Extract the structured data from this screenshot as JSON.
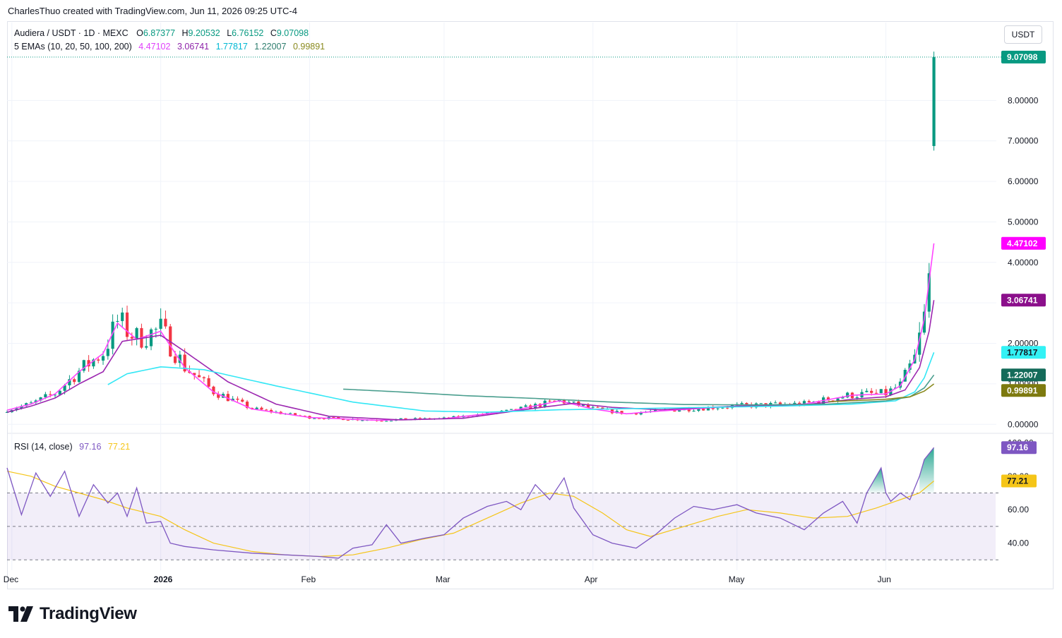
{
  "header": {
    "credit": "CharlesThuo created with TradingView.com, Jun 11, 2026 09:25 UTC-4"
  },
  "legend": {
    "symbol": "Audiera / USDT · 1D · MEXC",
    "o_label": "O",
    "o_value": "6.87377",
    "h_label": "H",
    "h_value": "9.20532",
    "l_label": "L",
    "l_value": "6.76152",
    "c_label": "C",
    "c_value": "9.07098",
    "ema_label": "5 EMAs (10, 20, 50, 100, 200)",
    "ema_values": [
      "4.47102",
      "3.06741",
      "1.77817",
      "1.22007",
      "0.99891"
    ]
  },
  "rsi_legend": {
    "label": "RSI (14, close)",
    "rsi_value": "97.16",
    "ma_value": "77.21"
  },
  "unit_button": "USDT",
  "logo_text": "TradingView",
  "colors": {
    "up": "#089981",
    "down": "#f23645",
    "ema10": "#ff44ff",
    "ema20": "#9c27b0",
    "ema50": "#33e7f5",
    "ema100": "#4a9e8e",
    "ema200": "#8a8a1f",
    "rsi": "#7e57c2",
    "rsi_ma": "#f5c518"
  },
  "chart_data": [
    {
      "type": "candlestick",
      "symbol": "Audiera / USDT",
      "interval": "1D",
      "exchange": "MEXC",
      "y_axis_labels": [
        "0.00000",
        "1.00000",
        "2.00000",
        "3.00000",
        "4.00000",
        "5.00000",
        "6.00000",
        "7.00000",
        "8.00000"
      ],
      "ylim": [
        -0.1,
        9.4
      ],
      "x_axis_labels": [
        {
          "label": "Dec",
          "date": "2025-12-01"
        },
        {
          "label": "2026",
          "date": "2026-01-01"
        },
        {
          "label": "Feb",
          "date": "2026-02-01"
        },
        {
          "label": "Mar",
          "date": "2026-03-01"
        },
        {
          "label": "Apr",
          "date": "2026-04-01"
        },
        {
          "label": "May",
          "date": "2026-05-01"
        },
        {
          "label": "Jun",
          "date": "2026-06-01"
        }
      ],
      "x_range": [
        "2025-11-30",
        "2026-06-24"
      ],
      "last_price": "9.07098",
      "last_ohlc": {
        "open": 6.87377,
        "high": 9.20532,
        "low": 6.76152,
        "close": 9.07098
      },
      "series": [
        {
          "name": "EMA 10",
          "current": "4.47102",
          "points": [
            [
              "2025-11-30",
              0.35
            ],
            [
              "2025-12-05",
              0.5
            ],
            [
              "2025-12-10",
              0.75
            ],
            [
              "2025-12-15",
              1.3
            ],
            [
              "2025-12-20",
              1.75
            ],
            [
              "2025-12-23",
              2.5
            ],
            [
              "2025-12-27",
              2.1
            ],
            [
              "2026-01-01",
              2.3
            ],
            [
              "2026-01-06",
              1.4
            ],
            [
              "2026-01-12",
              0.8
            ],
            [
              "2026-01-20",
              0.38
            ],
            [
              "2026-02-01",
              0.17
            ],
            [
              "2026-02-15",
              0.1
            ],
            [
              "2026-03-01",
              0.14
            ],
            [
              "2026-03-15",
              0.33
            ],
            [
              "2026-03-25",
              0.58
            ],
            [
              "2026-04-01",
              0.38
            ],
            [
              "2026-04-08",
              0.26
            ],
            [
              "2026-04-15",
              0.33
            ],
            [
              "2026-05-01",
              0.45
            ],
            [
              "2026-05-15",
              0.5
            ],
            [
              "2026-05-25",
              0.72
            ],
            [
              "2026-06-01",
              0.75
            ],
            [
              "2026-06-04",
              0.95
            ],
            [
              "2026-06-07",
              1.6
            ],
            [
              "2026-06-09",
              2.6
            ],
            [
              "2026-06-11",
              4.47102
            ]
          ]
        },
        {
          "name": "EMA 20",
          "current": "3.06741",
          "points": [
            [
              "2025-11-30",
              0.3
            ],
            [
              "2025-12-05",
              0.45
            ],
            [
              "2025-12-10",
              0.65
            ],
            [
              "2025-12-15",
              1.0
            ],
            [
              "2025-12-20",
              1.3
            ],
            [
              "2025-12-24",
              2.05
            ],
            [
              "2026-01-01",
              2.2
            ],
            [
              "2026-01-06",
              1.8
            ],
            [
              "2026-01-15",
              1.05
            ],
            [
              "2026-01-25",
              0.5
            ],
            [
              "2026-02-05",
              0.2
            ],
            [
              "2026-02-20",
              0.11
            ],
            [
              "2026-03-05",
              0.15
            ],
            [
              "2026-03-20",
              0.4
            ],
            [
              "2026-03-28",
              0.52
            ],
            [
              "2026-04-05",
              0.42
            ],
            [
              "2026-04-15",
              0.36
            ],
            [
              "2026-05-01",
              0.45
            ],
            [
              "2026-05-15",
              0.48
            ],
            [
              "2026-05-25",
              0.62
            ],
            [
              "2026-06-01",
              0.68
            ],
            [
              "2026-06-05",
              0.85
            ],
            [
              "2026-06-08",
              1.4
            ],
            [
              "2026-06-10",
              2.3
            ],
            [
              "2026-06-11",
              3.06741
            ]
          ]
        },
        {
          "name": "EMA 50",
          "current": "1.77817",
          "points": [
            [
              "2025-12-21",
              0.98
            ],
            [
              "2025-12-25",
              1.25
            ],
            [
              "2026-01-01",
              1.42
            ],
            [
              "2026-01-10",
              1.35
            ],
            [
              "2026-01-25",
              0.95
            ],
            [
              "2026-02-10",
              0.55
            ],
            [
              "2026-02-25",
              0.33
            ],
            [
              "2026-03-10",
              0.3
            ],
            [
              "2026-03-25",
              0.36
            ],
            [
              "2026-04-10",
              0.39
            ],
            [
              "2026-04-25",
              0.42
            ],
            [
              "2026-05-10",
              0.45
            ],
            [
              "2026-05-25",
              0.5
            ],
            [
              "2026-06-03",
              0.58
            ],
            [
              "2026-06-07",
              0.8
            ],
            [
              "2026-06-09",
              1.15
            ],
            [
              "2026-06-11",
              1.77817
            ]
          ]
        },
        {
          "name": "EMA 100",
          "current": "1.22007",
          "points": [
            [
              "2026-02-08",
              0.87
            ],
            [
              "2026-02-20",
              0.8
            ],
            [
              "2026-03-05",
              0.71
            ],
            [
              "2026-03-20",
              0.64
            ],
            [
              "2026-04-05",
              0.55
            ],
            [
              "2026-04-20",
              0.49
            ],
            [
              "2026-05-05",
              0.48
            ],
            [
              "2026-05-20",
              0.5
            ],
            [
              "2026-06-01",
              0.58
            ],
            [
              "2026-06-06",
              0.68
            ],
            [
              "2026-06-09",
              0.9
            ],
            [
              "2026-06-11",
              1.22007
            ]
          ]
        },
        {
          "name": "EMA 200",
          "current": "0.99891",
          "points": [
            [
              "2026-05-20",
              0.56
            ],
            [
              "2026-06-01",
              0.62
            ],
            [
              "2026-06-06",
              0.68
            ],
            [
              "2026-06-09",
              0.82
            ],
            [
              "2026-06-11",
              0.99891
            ]
          ]
        }
      ]
    },
    {
      "type": "line",
      "name": "RSI (14, close)",
      "y_axis_labels": [
        "40.00",
        "60.00",
        "80.00",
        "100.00"
      ],
      "ylim": [
        28,
        104
      ],
      "bands": {
        "upper": 70,
        "middle": 50,
        "lower": 30
      },
      "series": [
        {
          "name": "RSI",
          "current": "97.16",
          "points": [
            [
              "2025-11-30",
              85
            ],
            [
              "2025-12-03",
              57
            ],
            [
              "2025-12-06",
              82
            ],
            [
              "2025-12-09",
              68
            ],
            [
              "2025-12-12",
              83
            ],
            [
              "2025-12-15",
              56
            ],
            [
              "2025-12-18",
              75
            ],
            [
              "2025-12-21",
              64
            ],
            [
              "2025-12-23",
              70
            ],
            [
              "2025-12-25",
              56
            ],
            [
              "2025-12-27",
              73
            ],
            [
              "2025-12-29",
              52
            ],
            [
              "2026-01-01",
              53
            ],
            [
              "2026-01-03",
              40
            ],
            [
              "2026-01-06",
              38
            ],
            [
              "2026-01-12",
              36
            ],
            [
              "2026-01-20",
              34
            ],
            [
              "2026-01-27",
              33
            ],
            [
              "2026-02-03",
              32
            ],
            [
              "2026-02-07",
              31
            ],
            [
              "2026-02-10",
              37
            ],
            [
              "2026-02-14",
              39
            ],
            [
              "2026-02-17",
              51
            ],
            [
              "2026-02-20",
              40
            ],
            [
              "2026-02-25",
              43
            ],
            [
              "2026-03-01",
              45
            ],
            [
              "2026-03-05",
              55
            ],
            [
              "2026-03-10",
              62
            ],
            [
              "2026-03-14",
              65
            ],
            [
              "2026-03-17",
              60
            ],
            [
              "2026-03-20",
              75
            ],
            [
              "2026-03-23",
              66
            ],
            [
              "2026-03-26",
              79
            ],
            [
              "2026-03-28",
              61
            ],
            [
              "2026-04-01",
              45
            ],
            [
              "2026-04-05",
              40
            ],
            [
              "2026-04-10",
              37
            ],
            [
              "2026-04-14",
              45
            ],
            [
              "2026-04-18",
              55
            ],
            [
              "2026-04-22",
              62
            ],
            [
              "2026-04-26",
              60
            ],
            [
              "2026-05-01",
              63
            ],
            [
              "2026-05-05",
              58
            ],
            [
              "2026-05-10",
              55
            ],
            [
              "2026-05-15",
              48
            ],
            [
              "2026-05-19",
              58
            ],
            [
              "2026-05-23",
              65
            ],
            [
              "2026-05-26",
              52
            ],
            [
              "2026-05-28",
              70
            ],
            [
              "2026-05-31",
              85
            ],
            [
              "2026-06-01",
              70
            ],
            [
              "2026-06-02",
              65
            ],
            [
              "2026-06-04",
              70
            ],
            [
              "2026-06-06",
              66
            ],
            [
              "2026-06-08",
              80
            ],
            [
              "2026-06-09",
              90
            ],
            [
              "2026-06-11",
              97.16
            ]
          ]
        },
        {
          "name": "RSI-based MA",
          "current": "77.21",
          "points": [
            [
              "2025-11-30",
              83
            ],
            [
              "2025-12-05",
              80
            ],
            [
              "2025-12-10",
              74
            ],
            [
              "2025-12-15",
              70
            ],
            [
              "2025-12-20",
              66
            ],
            [
              "2025-12-25",
              61
            ],
            [
              "2026-01-01",
              56
            ],
            [
              "2026-01-06",
              48
            ],
            [
              "2026-01-12",
              40
            ],
            [
              "2026-01-20",
              35
            ],
            [
              "2026-01-27",
              33
            ],
            [
              "2026-02-03",
              32
            ],
            [
              "2026-02-10",
              33
            ],
            [
              "2026-02-17",
              37
            ],
            [
              "2026-02-24",
              42
            ],
            [
              "2026-03-03",
              46
            ],
            [
              "2026-03-10",
              55
            ],
            [
              "2026-03-17",
              64
            ],
            [
              "2026-03-23",
              70
            ],
            [
              "2026-03-28",
              68
            ],
            [
              "2026-04-03",
              58
            ],
            [
              "2026-04-08",
              48
            ],
            [
              "2026-04-13",
              44
            ],
            [
              "2026-04-20",
              50
            ],
            [
              "2026-04-27",
              56
            ],
            [
              "2026-05-03",
              60
            ],
            [
              "2026-05-10",
              58
            ],
            [
              "2026-05-17",
              55
            ],
            [
              "2026-05-24",
              56
            ],
            [
              "2026-05-30",
              61
            ],
            [
              "2026-06-04",
              66
            ],
            [
              "2026-06-08",
              70
            ],
            [
              "2026-06-11",
              77.21
            ]
          ]
        }
      ]
    }
  ]
}
